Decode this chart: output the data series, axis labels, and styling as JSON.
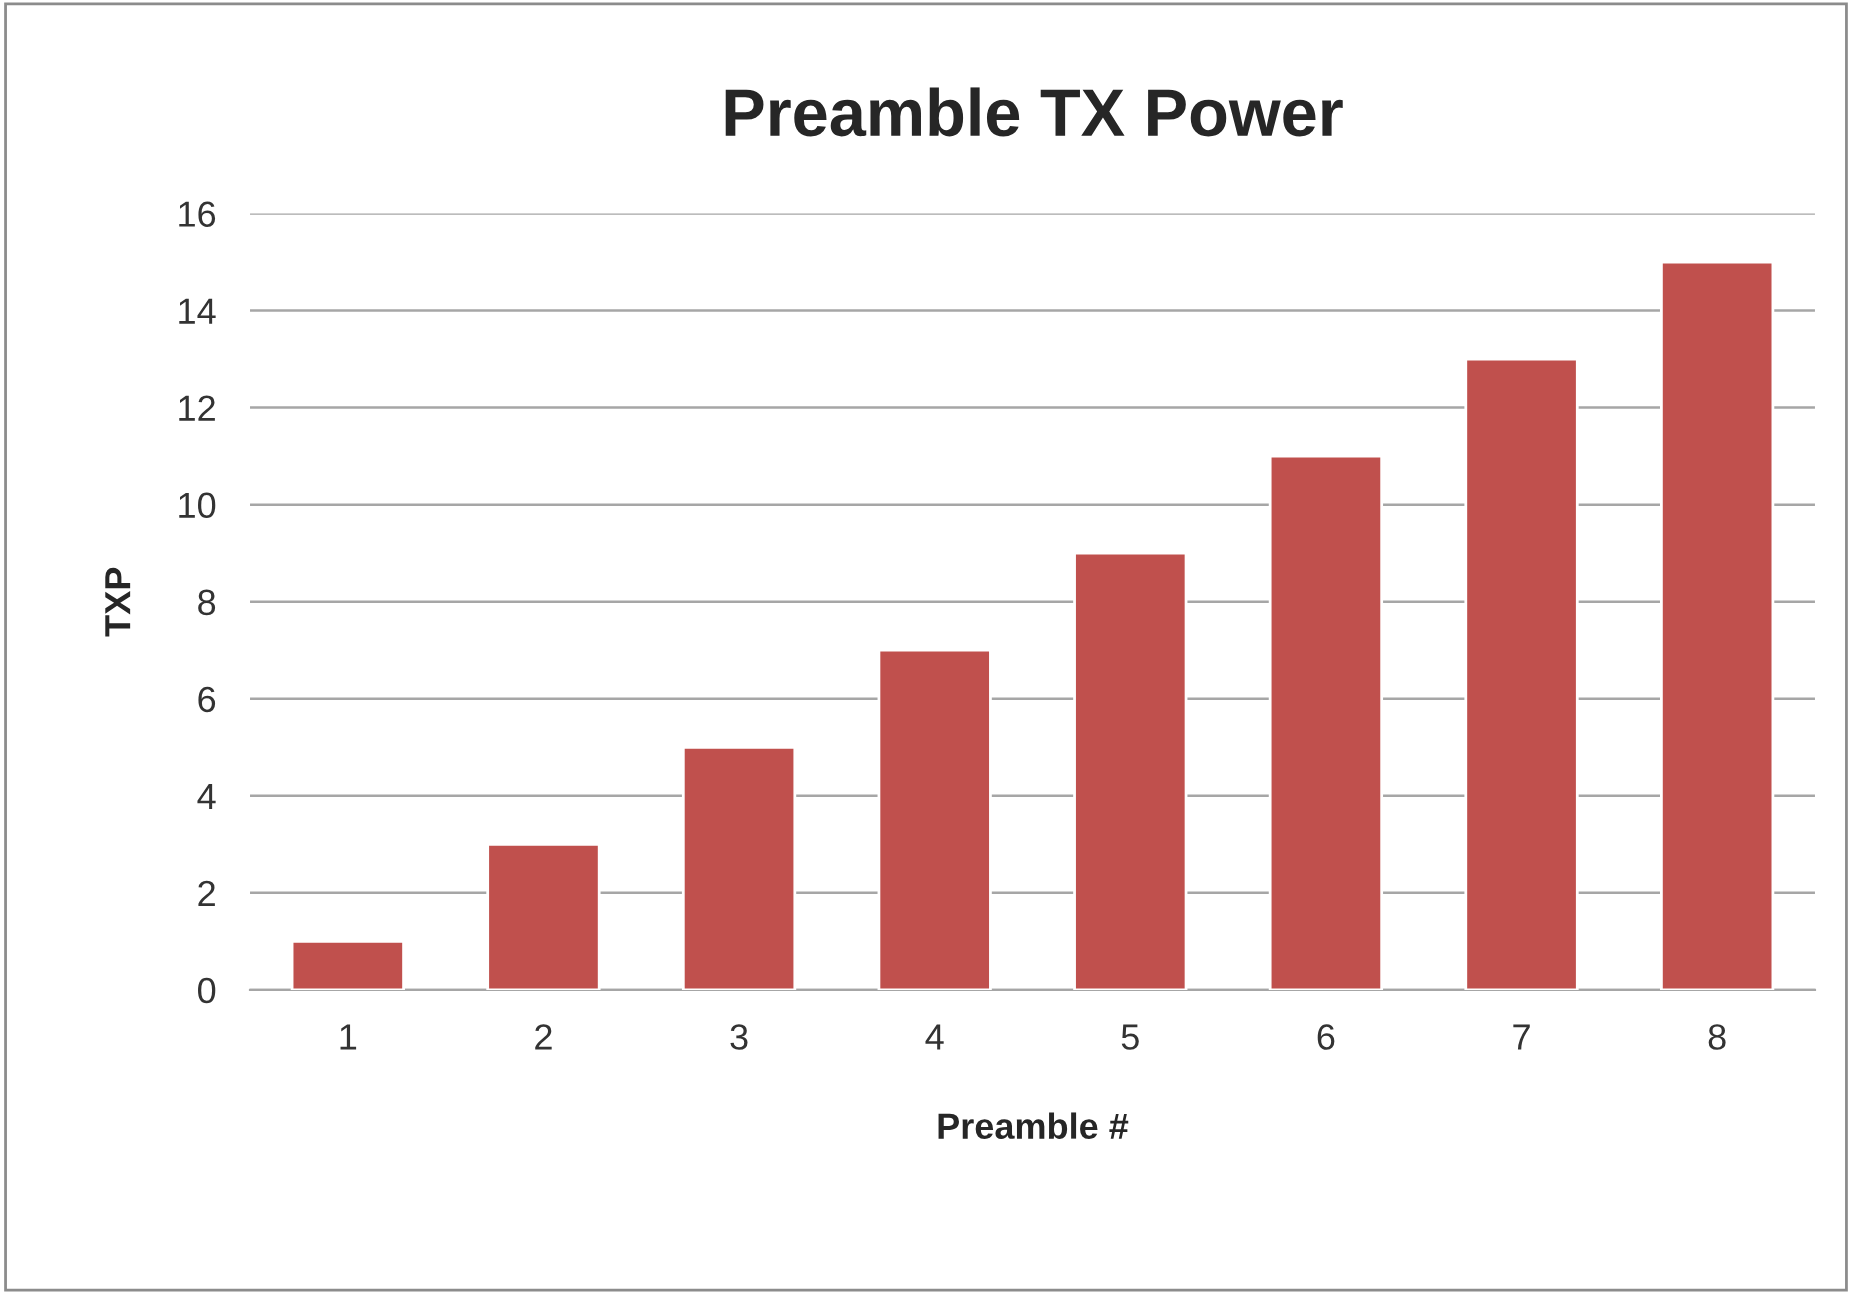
{
  "chart_data": {
    "type": "bar",
    "title": "Preamble TX Power",
    "xlabel": "Preamble #",
    "ylabel": "TXP",
    "categories": [
      "1",
      "2",
      "3",
      "4",
      "5",
      "6",
      "7",
      "8"
    ],
    "values": [
      1,
      3,
      5,
      7,
      9,
      11,
      13,
      15
    ],
    "color": "#c0504d",
    "ylim": [
      0,
      16
    ],
    "yticks": [
      0,
      2,
      4,
      6,
      8,
      10,
      12,
      14,
      16
    ],
    "grid": "y",
    "legend": false
  }
}
